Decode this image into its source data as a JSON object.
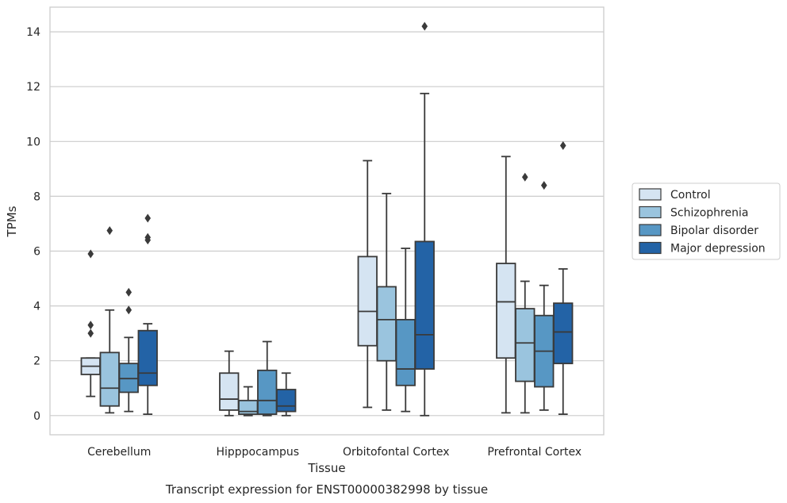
{
  "chart_data": {
    "type": "box",
    "caption": "Transcript expression for ENST00000382998 by tissue",
    "xlabel": "Tissue",
    "ylabel": "TPMs",
    "ylim": [
      -0.7,
      14.9
    ],
    "yticks": [
      0,
      2,
      4,
      6,
      8,
      10,
      12,
      14
    ],
    "grid": "horizontal",
    "legend_position": "right",
    "categories": [
      "Cerebellum",
      "Hipppocampus",
      "Orbitofontal Cortex",
      "Prefrontal Cortex"
    ],
    "series": [
      {
        "name": "Control",
        "color": "#d5e4f2",
        "boxes": [
          {
            "whisker_low": 0.7,
            "q1": 1.5,
            "median": 1.8,
            "q3": 2.1,
            "whisker_high": 2.1,
            "outliers": [
              5.9,
              3.3,
              3.0
            ]
          },
          {
            "whisker_low": 0.0,
            "q1": 0.2,
            "median": 0.6,
            "q3": 1.55,
            "whisker_high": 2.35,
            "outliers": []
          },
          {
            "whisker_low": 0.3,
            "q1": 2.55,
            "median": 3.8,
            "q3": 5.8,
            "whisker_high": 9.3,
            "outliers": []
          },
          {
            "whisker_low": 0.1,
            "q1": 2.1,
            "median": 4.15,
            "q3": 5.55,
            "whisker_high": 9.45,
            "outliers": []
          }
        ]
      },
      {
        "name": "Schizophrenia",
        "color": "#9ac4de",
        "boxes": [
          {
            "whisker_low": 0.1,
            "q1": 0.35,
            "median": 1.0,
            "q3": 2.3,
            "whisker_high": 3.85,
            "outliers": [
              6.75
            ]
          },
          {
            "whisker_low": 0.0,
            "q1": 0.05,
            "median": 0.15,
            "q3": 0.55,
            "whisker_high": 1.05,
            "outliers": []
          },
          {
            "whisker_low": 0.2,
            "q1": 2.0,
            "median": 3.5,
            "q3": 4.7,
            "whisker_high": 8.1,
            "outliers": []
          },
          {
            "whisker_low": 0.1,
            "q1": 1.25,
            "median": 2.65,
            "q3": 3.9,
            "whisker_high": 4.9,
            "outliers": [
              8.7
            ]
          }
        ]
      },
      {
        "name": "Bipolar disorder",
        "color": "#5797c4",
        "boxes": [
          {
            "whisker_low": 0.15,
            "q1": 0.85,
            "median": 1.35,
            "q3": 1.9,
            "whisker_high": 2.85,
            "outliers": [
              4.5,
              3.85
            ]
          },
          {
            "whisker_low": 0.0,
            "q1": 0.05,
            "median": 0.55,
            "q3": 1.65,
            "whisker_high": 2.7,
            "outliers": []
          },
          {
            "whisker_low": 0.15,
            "q1": 1.1,
            "median": 1.7,
            "q3": 3.5,
            "whisker_high": 6.1,
            "outliers": []
          },
          {
            "whisker_low": 0.2,
            "q1": 1.05,
            "median": 2.35,
            "q3": 3.65,
            "whisker_high": 4.75,
            "outliers": [
              8.4
            ]
          }
        ]
      },
      {
        "name": "Major depression",
        "color": "#2363a6",
        "boxes": [
          {
            "whisker_low": 0.05,
            "q1": 1.1,
            "median": 1.55,
            "q3": 3.1,
            "whisker_high": 3.35,
            "outliers": [
              7.2,
              6.5,
              6.4
            ]
          },
          {
            "whisker_low": 0.0,
            "q1": 0.15,
            "median": 0.35,
            "q3": 0.95,
            "whisker_high": 1.55,
            "outliers": []
          },
          {
            "whisker_low": 0.0,
            "q1": 1.7,
            "median": 2.95,
            "q3": 6.35,
            "whisker_high": 11.75,
            "outliers": [
              14.2
            ]
          },
          {
            "whisker_low": 0.05,
            "q1": 1.9,
            "median": 3.05,
            "q3": 4.1,
            "whisker_high": 5.35,
            "outliers": [
              9.85
            ]
          }
        ]
      }
    ]
  }
}
